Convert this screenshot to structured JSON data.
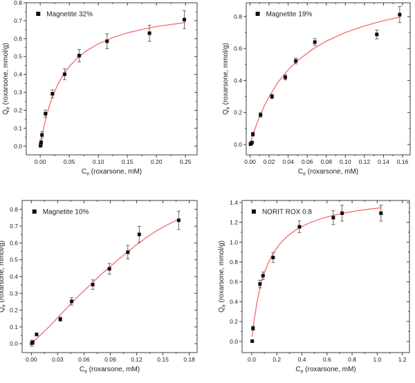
{
  "figure": {
    "background": "#ffffff",
    "colors": {
      "curve": "#f26a6a",
      "marker": "#0d0d0d",
      "error_bar": "#5a5a5a",
      "frame": "#3d3d3d",
      "text": "#1c1c1c"
    }
  },
  "chart_data": [
    {
      "type": "scatter",
      "legend": "Magnetite 32%",
      "x_axis": {
        "label": {
          "pre": "C",
          "sub": "e",
          "post": " (roxarsone, mM)"
        },
        "tick_values": [
          0.0,
          0.05,
          0.1,
          0.15,
          0.2,
          0.25
        ],
        "tick_labels": [
          "0.00",
          "0.05",
          "0.10",
          "0.15",
          "0.20",
          "0.25"
        ],
        "range": [
          -0.024,
          0.27
        ]
      },
      "y_axis": {
        "label": {
          "pre": "Q",
          "sub": "e",
          "post": " (roxarsone, mmol/g)"
        },
        "tick_values": [
          0.0,
          0.1,
          0.2,
          0.3,
          0.4,
          0.5,
          0.6,
          0.7,
          0.8
        ],
        "tick_labels": [
          "0.0",
          "0.1",
          "0.2",
          "0.3",
          "0.4",
          "0.5",
          "0.6",
          "0.7",
          "0.8"
        ],
        "range": [
          -0.049,
          0.8
        ]
      },
      "points": [
        [
          0.0005,
          0.002,
          0.008
        ],
        [
          0.001,
          0.01,
          0.008
        ],
        [
          0.0015,
          0.02,
          0.012
        ],
        [
          0.003,
          0.062,
          0.018
        ],
        [
          0.009,
          0.181,
          0.02
        ],
        [
          0.021,
          0.292,
          0.022
        ],
        [
          0.042,
          0.401,
          0.03
        ],
        [
          0.067,
          0.505,
          0.035
        ],
        [
          0.115,
          0.585,
          0.042
        ],
        [
          0.188,
          0.63,
          0.045
        ],
        [
          0.248,
          0.706,
          0.05
        ]
      ],
      "fit_curve": [
        [
          0.0005,
          0.01
        ],
        [
          0.002,
          0.038
        ],
        [
          0.005,
          0.089
        ],
        [
          0.01,
          0.16
        ],
        [
          0.015,
          0.218
        ],
        [
          0.02,
          0.267
        ],
        [
          0.03,
          0.343
        ],
        [
          0.04,
          0.4
        ],
        [
          0.05,
          0.444
        ],
        [
          0.065,
          0.495
        ],
        [
          0.08,
          0.533
        ],
        [
          0.1,
          0.571
        ],
        [
          0.125,
          0.606
        ],
        [
          0.15,
          0.632
        ],
        [
          0.175,
          0.651
        ],
        [
          0.2,
          0.667
        ],
        [
          0.225,
          0.679
        ],
        [
          0.25,
          0.69
        ]
      ]
    },
    {
      "type": "scatter",
      "legend": "Magnetite 19%",
      "x_axis": {
        "label": {
          "pre": "C",
          "sub": "e",
          "post": " (roxarsone, mM)"
        },
        "tick_values": [
          0.0,
          0.02,
          0.04,
          0.06,
          0.08,
          0.1,
          0.12,
          0.14,
          0.16
        ],
        "tick_labels": [
          "0.00",
          "0.02",
          "0.04",
          "0.06",
          "0.08",
          "0.10",
          "0.12",
          "0.14",
          "0.16"
        ],
        "range": [
          -0.004,
          0.168
        ]
      },
      "y_axis": {
        "label": {
          "pre": "Q",
          "sub": "e",
          "post": " (roxarsone, mmol/g)"
        },
        "tick_values": [
          0.0,
          0.2,
          0.4,
          0.6,
          0.8
        ],
        "tick_labels": [
          "0.0",
          "0.2",
          "0.4",
          "0.6",
          "0.8"
        ],
        "range": [
          -0.065,
          0.886
        ]
      },
      "points": [
        [
          0.0005,
          0.002,
          0.006
        ],
        [
          0.001,
          0.006,
          0.006
        ],
        [
          0.002,
          0.012,
          0.008
        ],
        [
          0.003,
          0.064,
          0.012
        ],
        [
          0.011,
          0.185,
          0.014
        ],
        [
          0.023,
          0.3,
          0.014
        ],
        [
          0.037,
          0.42,
          0.016
        ],
        [
          0.048,
          0.522,
          0.018
        ],
        [
          0.068,
          0.64,
          0.022
        ],
        [
          0.133,
          0.688,
          0.028
        ],
        [
          0.157,
          0.812,
          0.05
        ]
      ],
      "fit_curve": [
        [
          0.0005,
          0.01
        ],
        [
          0.002,
          0.04
        ],
        [
          0.005,
          0.095
        ],
        [
          0.01,
          0.175
        ],
        [
          0.015,
          0.242
        ],
        [
          0.02,
          0.3
        ],
        [
          0.03,
          0.394
        ],
        [
          0.04,
          0.467
        ],
        [
          0.05,
          0.525
        ],
        [
          0.065,
          0.593
        ],
        [
          0.08,
          0.646
        ],
        [
          0.1,
          0.7
        ],
        [
          0.12,
          0.741
        ],
        [
          0.14,
          0.774
        ],
        [
          0.158,
          0.797
        ]
      ]
    },
    {
      "type": "scatter",
      "legend": "Magnetite 10%",
      "x_axis": {
        "label": {
          "pre": "C",
          "sub": "e",
          "post": " (roxarsone, mM)"
        },
        "tick_values": [
          0.0,
          0.03,
          0.06,
          0.09,
          0.12,
          0.15,
          0.18
        ],
        "tick_labels": [
          "0.00",
          "0.03",
          "0.06",
          "0.09",
          "0.12",
          "0.15",
          "0.18"
        ],
        "range": [
          -0.0105,
          0.189
        ]
      },
      "y_axis": {
        "label": {
          "pre": "Q",
          "sub": "e",
          "post": " (roxarsone, mmol/g)"
        },
        "tick_values": [
          0.0,
          0.1,
          0.2,
          0.3,
          0.4,
          0.5,
          0.6,
          0.7,
          0.8
        ],
        "tick_labels": [
          "0.0",
          "0.1",
          "0.2",
          "0.3",
          "0.4",
          "0.5",
          "0.6",
          "0.7",
          "0.8"
        ],
        "range": [
          -0.053,
          0.853
        ]
      },
      "points": [
        [
          0.0005,
          0.002,
          0.018
        ],
        [
          0.0015,
          0.008,
          0.012
        ],
        [
          0.006,
          0.055,
          0.008
        ],
        [
          0.033,
          0.146,
          0.012
        ],
        [
          0.046,
          0.252,
          0.022
        ],
        [
          0.07,
          0.352,
          0.028
        ],
        [
          0.089,
          0.446,
          0.032
        ],
        [
          0.11,
          0.545,
          0.04
        ],
        [
          0.123,
          0.651,
          0.048
        ],
        [
          0.168,
          0.735,
          0.055
        ]
      ],
      "fit_curve": [
        [
          0.001,
          0.005
        ],
        [
          0.01,
          0.05
        ],
        [
          0.02,
          0.1
        ],
        [
          0.03,
          0.155
        ],
        [
          0.04,
          0.21
        ],
        [
          0.05,
          0.265
        ],
        [
          0.06,
          0.315
        ],
        [
          0.07,
          0.365
        ],
        [
          0.08,
          0.415
        ],
        [
          0.09,
          0.46
        ],
        [
          0.1,
          0.505
        ],
        [
          0.11,
          0.548
        ],
        [
          0.12,
          0.59
        ],
        [
          0.13,
          0.628
        ],
        [
          0.14,
          0.663
        ],
        [
          0.15,
          0.694
        ],
        [
          0.16,
          0.721
        ],
        [
          0.168,
          0.741
        ]
      ]
    },
    {
      "type": "scatter",
      "legend": "NORIT ROX 0.8",
      "x_axis": {
        "label": {
          "pre": "C",
          "sub": "e",
          "post": " (roxarsone, mM)"
        },
        "tick_values": [
          0.0,
          0.2,
          0.4,
          0.6,
          0.8,
          1.0,
          1.2
        ],
        "tick_labels": [
          "0.0",
          "0.2",
          "0.4",
          "0.6",
          "0.8",
          "1.0",
          "1.2"
        ],
        "range": [
          -0.077,
          1.257
        ]
      },
      "y_axis": {
        "label": {
          "pre": "Q",
          "sub": "e",
          "post": " (roxarsone, mmol/g)"
        },
        "tick_values": [
          0.0,
          0.2,
          0.4,
          0.6,
          0.8,
          1.0,
          1.2,
          1.4
        ],
        "tick_labels": [
          "0.0",
          "0.2",
          "0.4",
          "0.6",
          "0.8",
          "1.0",
          "1.2",
          "1.4"
        ],
        "range": [
          -0.113,
          1.42
        ]
      },
      "points": [
        [
          0.004,
          0.002,
          0.012
        ],
        [
          0.01,
          0.132,
          0.02
        ],
        [
          0.065,
          0.578,
          0.038
        ],
        [
          0.09,
          0.662,
          0.038
        ],
        [
          0.17,
          0.845,
          0.05
        ],
        [
          0.38,
          1.155,
          0.06
        ],
        [
          0.65,
          1.247,
          0.07
        ],
        [
          0.72,
          1.292,
          0.08
        ],
        [
          1.03,
          1.292,
          0.08
        ]
      ],
      "fit_curve": [
        [
          0.004,
          0.05
        ],
        [
          0.01,
          0.117
        ],
        [
          0.02,
          0.218
        ],
        [
          0.04,
          0.381
        ],
        [
          0.06,
          0.507
        ],
        [
          0.08,
          0.607
        ],
        [
          0.1,
          0.689
        ],
        [
          0.13,
          0.787
        ],
        [
          0.17,
          0.886
        ],
        [
          0.22,
          0.977
        ],
        [
          0.28,
          1.056
        ],
        [
          0.35,
          1.123
        ],
        [
          0.45,
          1.189
        ],
        [
          0.55,
          1.236
        ],
        [
          0.65,
          1.27
        ],
        [
          0.75,
          1.297
        ],
        [
          0.85,
          1.318
        ],
        [
          0.95,
          1.335
        ],
        [
          1.03,
          1.347
        ]
      ]
    }
  ]
}
